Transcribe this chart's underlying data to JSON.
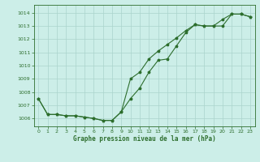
{
  "xlabel": "Graphe pression niveau de la mer (hPa)",
  "bg_color": "#cceee8",
  "grid_color": "#aad4cc",
  "line_color": "#2d6e2d",
  "ylim": [
    1005.4,
    1014.6
  ],
  "xlim": [
    -0.5,
    23.5
  ],
  "yticks": [
    1006,
    1007,
    1008,
    1009,
    1010,
    1011,
    1012,
    1013,
    1014
  ],
  "xticks": [
    0,
    1,
    2,
    3,
    4,
    5,
    6,
    7,
    8,
    9,
    10,
    11,
    12,
    13,
    14,
    15,
    16,
    17,
    18,
    19,
    20,
    21,
    22,
    23
  ],
  "series1_x": [
    0,
    1,
    2,
    3,
    4,
    5,
    6,
    7,
    8,
    9,
    10,
    11,
    12,
    13,
    14,
    15,
    16,
    17,
    18,
    19,
    20,
    21,
    22,
    23
  ],
  "series1_y": [
    1007.5,
    1006.3,
    1006.3,
    1006.2,
    1006.2,
    1006.1,
    1006.0,
    1005.85,
    1005.85,
    1006.5,
    1007.5,
    1008.3,
    1009.5,
    1010.4,
    1010.5,
    1011.5,
    1012.5,
    1013.1,
    1013.0,
    1013.0,
    1013.5,
    1013.9,
    1013.9,
    1013.7
  ],
  "series2_x": [
    0,
    1,
    2,
    3,
    4,
    5,
    6,
    7,
    8,
    9,
    10,
    11,
    12,
    13,
    14,
    15,
    16,
    17,
    18,
    19,
    20,
    21,
    22,
    23
  ],
  "series2_y": [
    1007.5,
    1006.3,
    1006.3,
    1006.2,
    1006.2,
    1006.1,
    1006.0,
    1005.85,
    1005.85,
    1006.5,
    1009.0,
    1009.5,
    1010.5,
    1011.1,
    1011.6,
    1012.1,
    1012.65,
    1013.1,
    1013.0,
    1013.0,
    1013.0,
    1013.9,
    1013.9,
    1013.7
  ]
}
